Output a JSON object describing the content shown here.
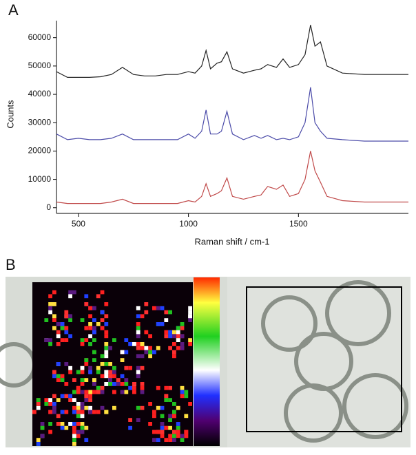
{
  "chart_data": {
    "type": "line",
    "panel_label": "A",
    "x_label": "Raman shift / cm-1",
    "y_label": "Counts",
    "x": [
      400,
      450,
      500,
      550,
      600,
      650,
      700,
      750,
      800,
      850,
      900,
      950,
      1000,
      1030,
      1060,
      1080,
      1100,
      1130,
      1150,
      1175,
      1200,
      1250,
      1300,
      1330,
      1360,
      1400,
      1430,
      1460,
      1500,
      1530,
      1555,
      1575,
      1600,
      1630,
      1700,
      1800,
      1900,
      2000
    ],
    "series": [
      {
        "color": "#222222",
        "values": [
          48000,
          46000,
          46000,
          46000,
          46200,
          47000,
          49500,
          47000,
          46500,
          46500,
          47000,
          47000,
          48000,
          47500,
          50000,
          55500,
          49000,
          51000,
          51500,
          55000,
          49000,
          47500,
          48500,
          49000,
          50500,
          49500,
          52500,
          49500,
          50500,
          54000,
          64500,
          57000,
          58500,
          50000,
          47500,
          47000,
          47000,
          47000
        ]
      },
      {
        "color": "#4a4aa8",
        "values": [
          26000,
          24000,
          24500,
          24000,
          24000,
          24500,
          26000,
          24000,
          24000,
          24000,
          24000,
          24000,
          26000,
          24500,
          27000,
          34500,
          26000,
          26000,
          27000,
          34000,
          26000,
          24000,
          25500,
          24500,
          25500,
          24000,
          24500,
          24000,
          25000,
          30000,
          42500,
          30000,
          27000,
          24500,
          24000,
          23500,
          23500,
          23500
        ]
      },
      {
        "color": "#c04848",
        "values": [
          2000,
          1500,
          1500,
          1500,
          1500,
          2000,
          3000,
          1500,
          1500,
          1500,
          1500,
          1500,
          2500,
          2000,
          4000,
          8500,
          4000,
          5000,
          6000,
          10500,
          4000,
          3000,
          4000,
          4500,
          7500,
          6500,
          8000,
          4000,
          5000,
          10000,
          20000,
          13000,
          9000,
          4000,
          2500,
          2000,
          2000,
          2000
        ]
      }
    ],
    "xlim": [
      400,
      2000
    ],
    "xticks": [
      500,
      1000,
      1500
    ],
    "ylim": [
      -2000,
      66000
    ],
    "yticks": [
      0,
      10000,
      20000,
      30000,
      40000,
      50000,
      60000
    ]
  },
  "figure_b": {
    "label": "B"
  }
}
